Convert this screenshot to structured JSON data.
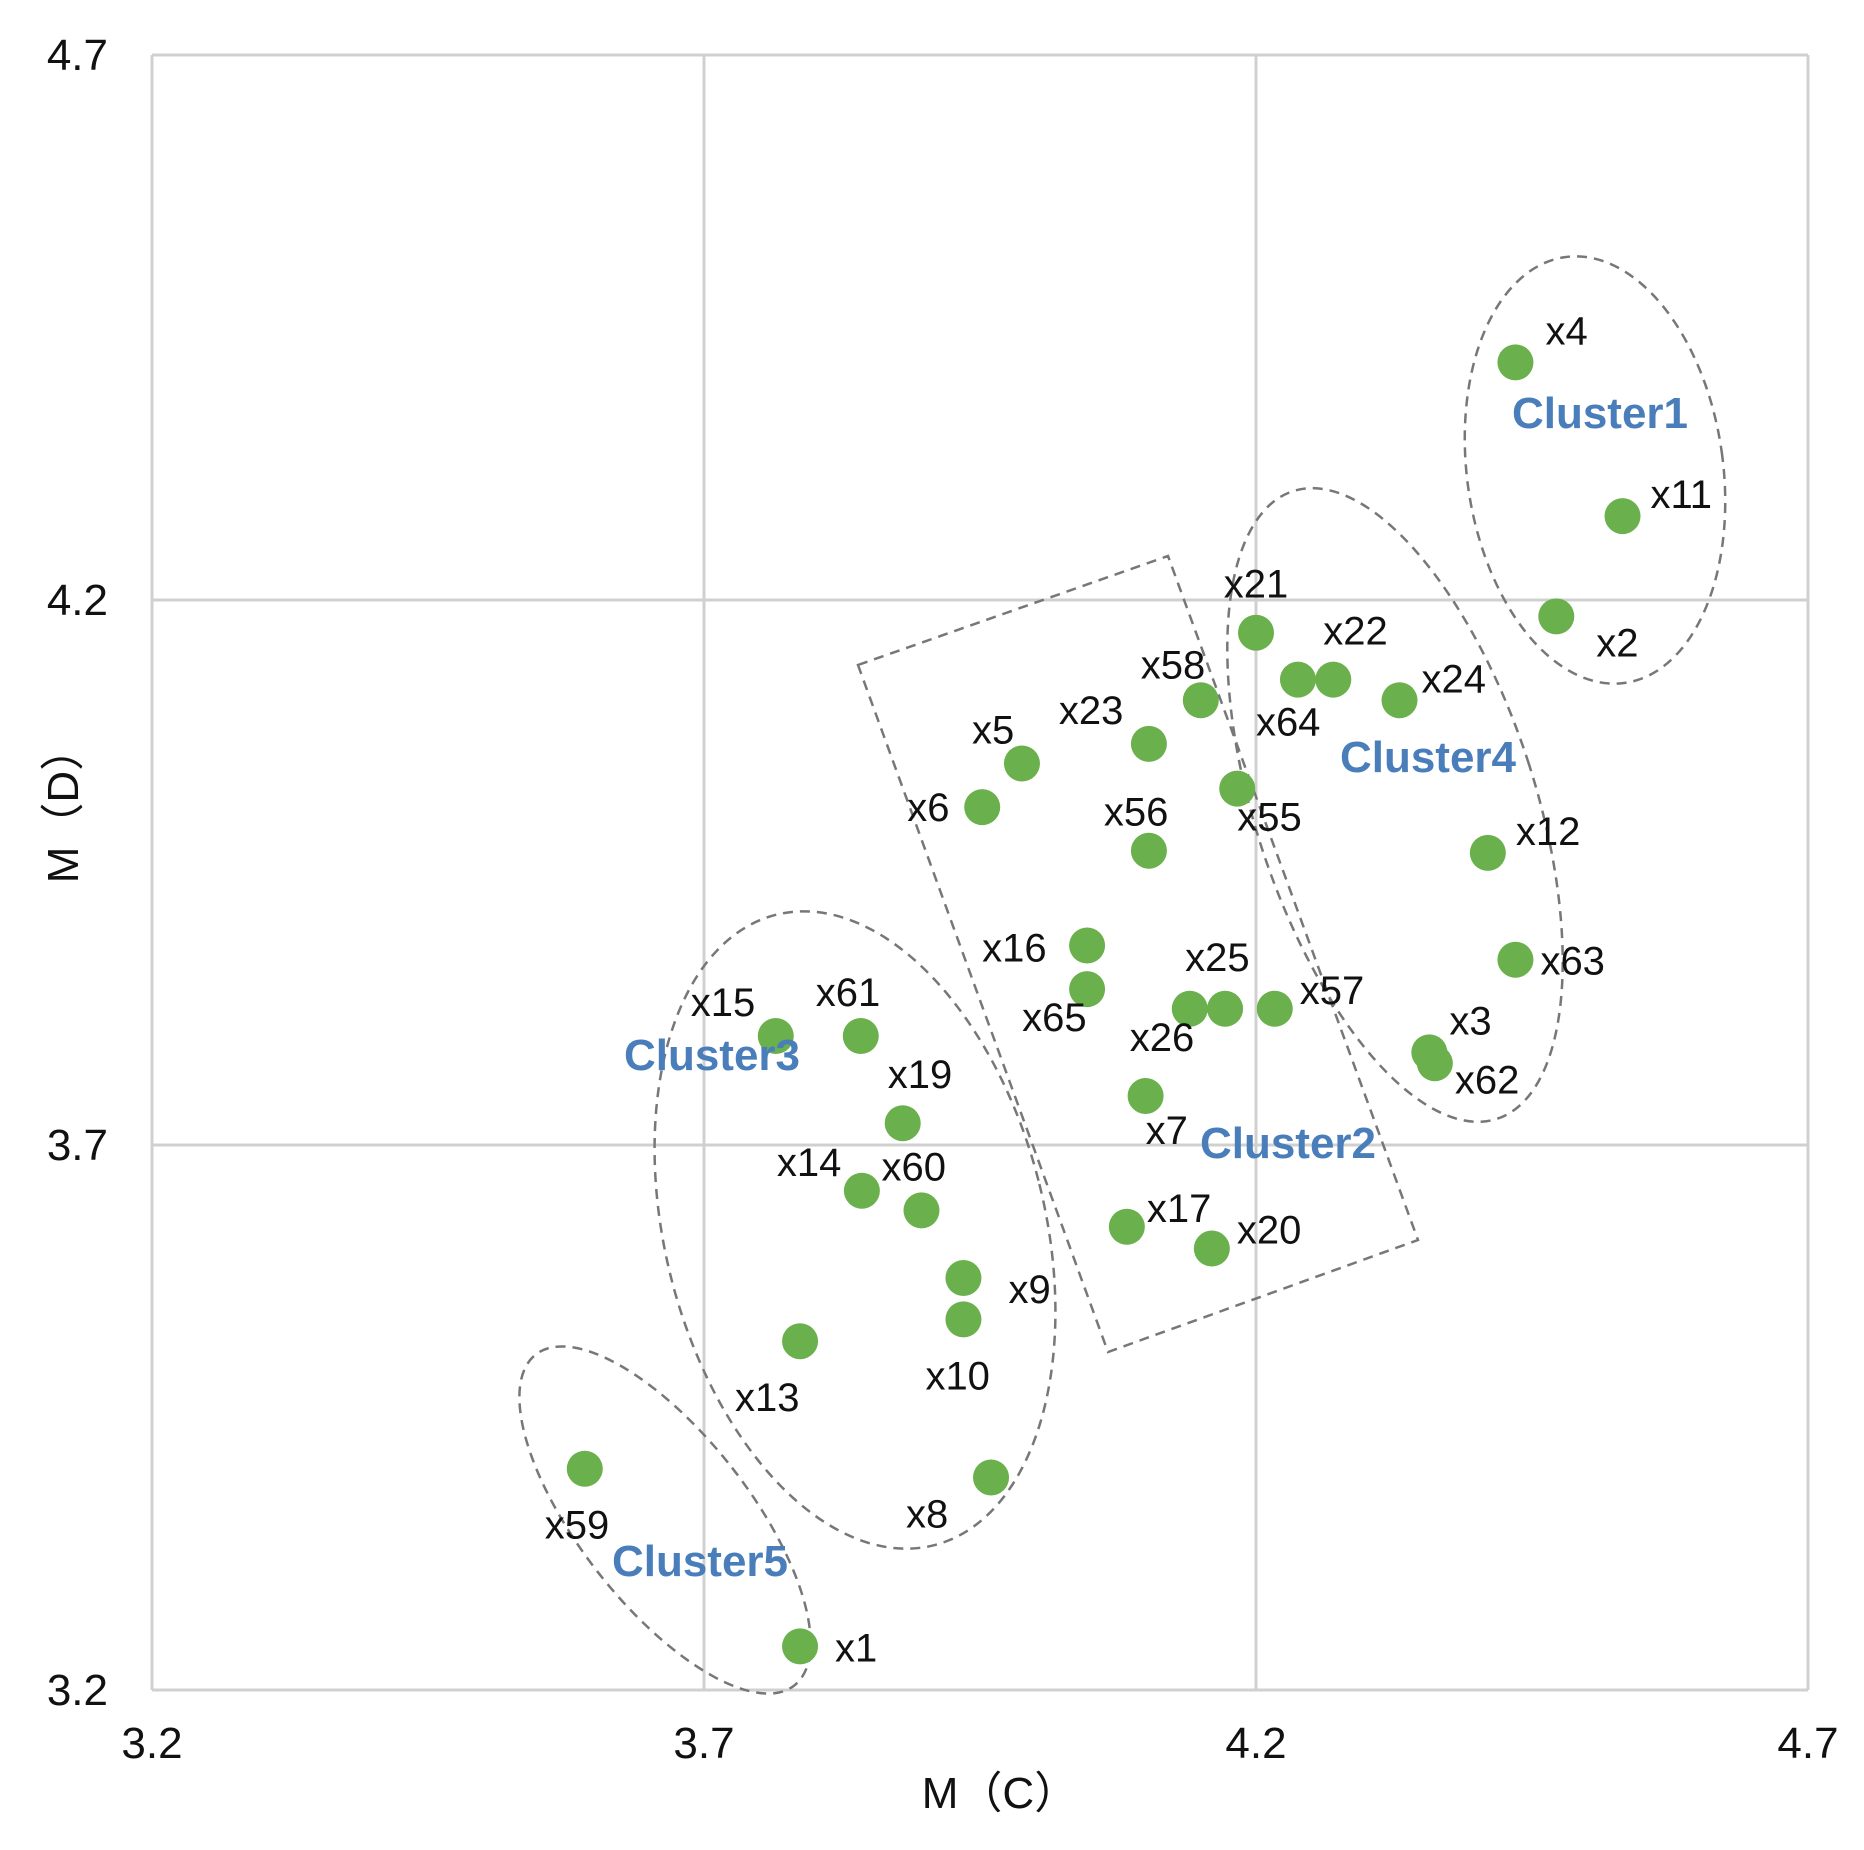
{
  "chart_data": {
    "type": "scatter",
    "xlabel": "M（C）",
    "ylabel": "M（D）",
    "xlim": [
      3.2,
      4.7
    ],
    "ylim": [
      3.2,
      4.7
    ],
    "xticks": [
      "3.2",
      "3.7",
      "4.2",
      "4.7"
    ],
    "yticks": [
      "3.2",
      "3.7",
      "4.2",
      "4.7"
    ],
    "grid": true,
    "colors": {
      "point": "#6ab04c",
      "cluster_label": "#4a7ebb",
      "grid": "#d0d0d0",
      "outline": "#777777"
    },
    "points": [
      {
        "label": "x4",
        "x": 4.435,
        "y": 4.418
      },
      {
        "label": "x11",
        "x": 4.532,
        "y": 4.277
      },
      {
        "label": "x2",
        "x": 4.472,
        "y": 4.185
      },
      {
        "label": "x21",
        "x": 4.2,
        "y": 4.17
      },
      {
        "label": "x22",
        "x": 4.27,
        "y": 4.127
      },
      {
        "label": "x64",
        "x": 4.238,
        "y": 4.127
      },
      {
        "label": "x24",
        "x": 4.33,
        "y": 4.108
      },
      {
        "label": "x58",
        "x": 4.15,
        "y": 4.108
      },
      {
        "label": "x23",
        "x": 4.103,
        "y": 4.068
      },
      {
        "label": "x5",
        "x": 3.988,
        "y": 4.05
      },
      {
        "label": "x55",
        "x": 4.183,
        "y": 4.027
      },
      {
        "label": "x6",
        "x": 3.952,
        "y": 4.01
      },
      {
        "label": "x56",
        "x": 4.103,
        "y": 3.97
      },
      {
        "label": "x12",
        "x": 4.41,
        "y": 3.968
      },
      {
        "label": "x16",
        "x": 4.047,
        "y": 3.883
      },
      {
        "label": "x63",
        "x": 4.435,
        "y": 3.87
      },
      {
        "label": "x65",
        "x": 4.047,
        "y": 3.843
      },
      {
        "label": "x25",
        "x": 4.172,
        "y": 3.825
      },
      {
        "label": "x26",
        "x": 4.14,
        "y": 3.825
      },
      {
        "label": "x57",
        "x": 4.217,
        "y": 3.825
      },
      {
        "label": "x15",
        "x": 3.765,
        "y": 3.8
      },
      {
        "label": "x61",
        "x": 3.842,
        "y": 3.8
      },
      {
        "label": "x3",
        "x": 4.357,
        "y": 3.785
      },
      {
        "label": "x62",
        "x": 4.362,
        "y": 3.775
      },
      {
        "label": "x7",
        "x": 4.1,
        "y": 3.745
      },
      {
        "label": "x19",
        "x": 3.88,
        "y": 3.72
      },
      {
        "label": "x14",
        "x": 3.843,
        "y": 3.658
      },
      {
        "label": "x60",
        "x": 3.897,
        "y": 3.64
      },
      {
        "label": "x17",
        "x": 4.083,
        "y": 3.625
      },
      {
        "label": "x20",
        "x": 4.16,
        "y": 3.605
      },
      {
        "label": "x9",
        "x": 3.935,
        "y": 3.578
      },
      {
        "label": "x10",
        "x": 3.935,
        "y": 3.54
      },
      {
        "label": "x13",
        "x": 3.787,
        "y": 3.52
      },
      {
        "label": "x59",
        "x": 3.592,
        "y": 3.403
      },
      {
        "label": "x8",
        "x": 3.96,
        "y": 3.395
      },
      {
        "label": "x1",
        "x": 3.787,
        "y": 3.24
      }
    ],
    "clusters": [
      {
        "name": "Cluster1",
        "members": [
          "x4",
          "x11",
          "x2"
        ]
      },
      {
        "name": "Cluster2",
        "members": [
          "x21",
          "x58",
          "x23",
          "x5",
          "x6",
          "x55",
          "x56",
          "x16",
          "x65",
          "x25",
          "x26",
          "x57",
          "x7",
          "x17",
          "x20"
        ]
      },
      {
        "name": "Cluster3",
        "members": [
          "x15",
          "x61",
          "x19",
          "x14",
          "x60",
          "x9",
          "x10",
          "x13",
          "x8"
        ]
      },
      {
        "name": "Cluster4",
        "members": [
          "x22",
          "x64",
          "x24",
          "x12",
          "x63",
          "x3",
          "x62"
        ]
      },
      {
        "name": "Cluster5",
        "members": [
          "x59",
          "x1"
        ]
      }
    ]
  }
}
